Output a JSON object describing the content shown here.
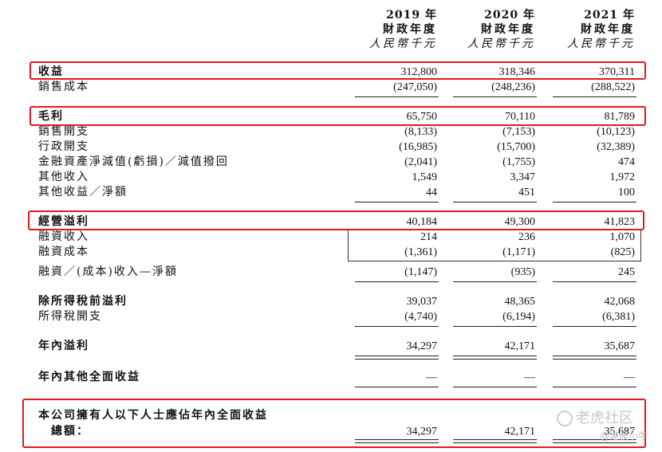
{
  "header": {
    "columns": [
      {
        "year": "2019 年",
        "period": "財政年度",
        "currency": "人民幣千元"
      },
      {
        "year": "2020 年",
        "period": "財政年度",
        "currency": "人民幣千元"
      },
      {
        "year": "2021 年",
        "period": "財政年度",
        "currency": "人民幣千元"
      }
    ]
  },
  "rows": [
    {
      "label": "收益",
      "v": [
        "312,800",
        "318,346",
        "370,311"
      ]
    },
    {
      "label": "銷售成本",
      "v": [
        "(247,050)",
        "(248,236)",
        "(288,522)"
      ]
    },
    {
      "label": "毛利",
      "v": [
        "65,750",
        "70,110",
        "81,789"
      ]
    },
    {
      "label": "銷售開支",
      "v": [
        "(8,133)",
        "(7,153)",
        "(10,123)"
      ]
    },
    {
      "label": "行政開支",
      "v": [
        "(16,985)",
        "(15,700)",
        "(32,389)"
      ]
    },
    {
      "label": "金融資產淨減值(虧損)／減值撥回",
      "v": [
        "(2,041)",
        "(1,755)",
        "474"
      ]
    },
    {
      "label": "其他收入",
      "v": [
        "1,549",
        "3,347",
        "1,972"
      ]
    },
    {
      "label": "其他收益／淨額",
      "v": [
        "44",
        "451",
        "100"
      ]
    },
    {
      "label": "經營溢利",
      "v": [
        "40,184",
        "49,300",
        "41,823"
      ]
    },
    {
      "label": "融資收入",
      "v": [
        "214",
        "236",
        "1,070"
      ]
    },
    {
      "label": "融資成本",
      "v": [
        "(1,361)",
        "(1,171)",
        "(825)"
      ]
    },
    {
      "label": "融資／(成本)收入—淨額",
      "v": [
        "(1,147)",
        "(935)",
        "245"
      ]
    },
    {
      "label": "除所得稅前溢利",
      "v": [
        "39,037",
        "48,365",
        "42,068"
      ]
    },
    {
      "label": "所得稅開支",
      "v": [
        "(4,740)",
        "(6,194)",
        "(6,381)"
      ]
    },
    {
      "label": "年內溢利",
      "v": [
        "34,297",
        "42,171",
        "35,687"
      ]
    },
    {
      "label": "年內其他全面收益",
      "v": [
        "—",
        "—",
        "—"
      ]
    },
    {
      "label": "本公司擁有人以下人士應佔年內全面收益",
      "v": [
        "",
        "",
        ""
      ]
    },
    {
      "label": "總額：",
      "v": [
        "34,297",
        "42,171",
        "35,687"
      ]
    }
  ],
  "watermark": {
    "text": "老虎社区",
    "sub": "@港股小牛"
  }
}
